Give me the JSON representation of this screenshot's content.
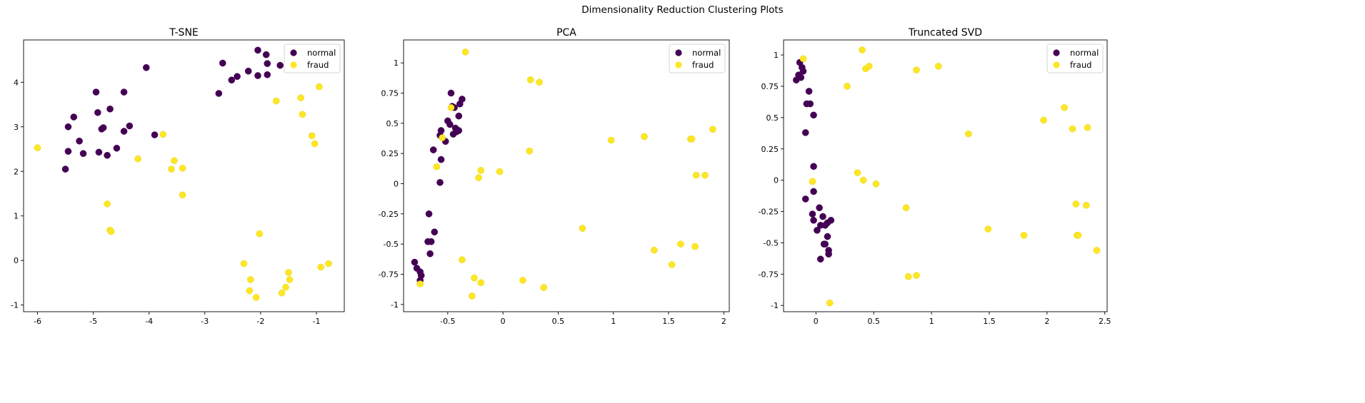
{
  "suptitle": "Dimensionality Reduction Clustering Plots",
  "colors": {
    "normal": "#440154",
    "fraud": "#fde725"
  },
  "chart_data": [
    {
      "type": "scatter",
      "title": "T-SNE",
      "xlabel": "",
      "ylabel": "",
      "xlim": [
        -6.25,
        -0.5
      ],
      "ylim": [
        -1.15,
        4.95
      ],
      "xticks": [
        -6,
        -5,
        -4,
        -3,
        -2,
        -1
      ],
      "yticks": [
        -1,
        0,
        1,
        2,
        3,
        4
      ],
      "legend": "top-right",
      "series": [
        {
          "name": "normal",
          "points": [
            [
              -5.5,
              2.05
            ],
            [
              -5.45,
              2.45
            ],
            [
              -5.45,
              3.0
            ],
            [
              -5.35,
              3.22
            ],
            [
              -5.25,
              2.68
            ],
            [
              -5.18,
              2.4
            ],
            [
              -4.95,
              3.78
            ],
            [
              -4.92,
              3.32
            ],
            [
              -4.9,
              2.43
            ],
            [
              -4.85,
              2.95
            ],
            [
              -4.82,
              2.98
            ],
            [
              -4.75,
              2.36
            ],
            [
              -4.7,
              3.4
            ],
            [
              -4.58,
              2.52
            ],
            [
              -4.45,
              3.78
            ],
            [
              -4.45,
              2.9
            ],
            [
              -4.35,
              3.02
            ],
            [
              -4.05,
              4.33
            ],
            [
              -3.9,
              2.82
            ],
            [
              -2.75,
              3.75
            ],
            [
              -2.68,
              4.43
            ],
            [
              -2.52,
              4.05
            ],
            [
              -2.42,
              4.13
            ],
            [
              -2.22,
              4.25
            ],
            [
              -2.05,
              4.72
            ],
            [
              -2.05,
              4.15
            ],
            [
              -1.9,
              4.62
            ],
            [
              -1.88,
              4.42
            ],
            [
              -1.88,
              4.17
            ],
            [
              -1.65,
              4.38
            ]
          ]
        },
        {
          "name": "fraud",
          "points": [
            [
              -6.0,
              2.53
            ],
            [
              -4.75,
              1.27
            ],
            [
              -4.7,
              0.68
            ],
            [
              -4.68,
              0.65
            ],
            [
              -4.2,
              2.28
            ],
            [
              -3.75,
              2.83
            ],
            [
              -3.6,
              2.05
            ],
            [
              -3.55,
              2.24
            ],
            [
              -3.4,
              2.07
            ],
            [
              -3.4,
              1.47
            ],
            [
              -2.3,
              -0.07
            ],
            [
              -2.2,
              -0.68
            ],
            [
              -2.18,
              -0.43
            ],
            [
              -2.08,
              -0.83
            ],
            [
              -2.02,
              0.6
            ],
            [
              -1.72,
              3.58
            ],
            [
              -1.62,
              -0.73
            ],
            [
              -1.55,
              -0.6
            ],
            [
              -1.5,
              -0.27
            ],
            [
              -1.48,
              -0.43
            ],
            [
              -1.28,
              3.65
            ],
            [
              -1.25,
              3.28
            ],
            [
              -1.08,
              2.8
            ],
            [
              -1.03,
              2.62
            ],
            [
              -0.95,
              3.9
            ],
            [
              -0.92,
              -0.15
            ],
            [
              -0.78,
              -0.07
            ]
          ]
        }
      ]
    },
    {
      "type": "scatter",
      "title": "PCA",
      "xlabel": "",
      "ylabel": "",
      "xlim": [
        -0.9,
        2.05
      ],
      "ylim": [
        -1.06,
        1.19
      ],
      "xticks": [
        -0.5,
        0.0,
        0.5,
        1.0,
        1.5,
        2.0
      ],
      "yticks": [
        -1.0,
        -0.75,
        -0.5,
        -0.25,
        0.0,
        0.25,
        0.5,
        0.75,
        1.0
      ],
      "legend": "top-right",
      "series": [
        {
          "name": "normal",
          "points": [
            [
              -0.8,
              -0.65
            ],
            [
              -0.78,
              -0.7
            ],
            [
              -0.75,
              -0.73
            ],
            [
              -0.75,
              -0.8
            ],
            [
              -0.74,
              -0.76
            ],
            [
              -0.68,
              -0.48
            ],
            [
              -0.67,
              -0.25
            ],
            [
              -0.66,
              -0.58
            ],
            [
              -0.65,
              -0.48
            ],
            [
              -0.62,
              -0.4
            ],
            [
              -0.63,
              0.28
            ],
            [
              -0.57,
              0.4
            ],
            [
              -0.56,
              0.44
            ],
            [
              -0.56,
              0.2
            ],
            [
              -0.57,
              0.01
            ],
            [
              -0.52,
              0.35
            ],
            [
              -0.5,
              0.52
            ],
            [
              -0.48,
              0.49
            ],
            [
              -0.47,
              0.75
            ],
            [
              -0.46,
              0.64
            ],
            [
              -0.44,
              0.63
            ],
            [
              -0.45,
              0.41
            ],
            [
              -0.43,
              0.46
            ],
            [
              -0.42,
              0.43
            ],
            [
              -0.4,
              0.44
            ],
            [
              -0.4,
              0.56
            ],
            [
              -0.39,
              0.66
            ],
            [
              -0.37,
              0.7
            ]
          ]
        },
        {
          "name": "fraud",
          "points": [
            [
              -0.75,
              -0.83
            ],
            [
              -0.6,
              0.14
            ],
            [
              -0.55,
              0.38
            ],
            [
              -0.47,
              0.63
            ],
            [
              -0.37,
              -0.63
            ],
            [
              -0.34,
              1.09
            ],
            [
              -0.28,
              -0.93
            ],
            [
              -0.26,
              -0.78
            ],
            [
              -0.22,
              0.05
            ],
            [
              -0.2,
              0.11
            ],
            [
              -0.2,
              -0.82
            ],
            [
              -0.03,
              0.1
            ],
            [
              0.18,
              -0.8
            ],
            [
              0.24,
              0.27
            ],
            [
              0.25,
              0.86
            ],
            [
              0.33,
              0.84
            ],
            [
              0.37,
              -0.86
            ],
            [
              0.72,
              -0.37
            ],
            [
              0.98,
              0.36
            ],
            [
              1.28,
              0.39
            ],
            [
              1.37,
              -0.55
            ],
            [
              1.53,
              -0.67
            ],
            [
              1.61,
              -0.5
            ],
            [
              1.7,
              0.37
            ],
            [
              1.71,
              0.37
            ],
            [
              1.74,
              -0.52
            ],
            [
              1.75,
              0.07
            ],
            [
              1.83,
              0.07
            ],
            [
              1.9,
              0.45
            ]
          ]
        }
      ]
    },
    {
      "type": "scatter",
      "title": "Truncated SVD",
      "xlabel": "",
      "ylabel": "",
      "xlim": [
        -0.28,
        2.52
      ],
      "ylim": [
        -1.05,
        1.12
      ],
      "xticks": [
        0.0,
        0.5,
        1.0,
        1.5,
        2.0,
        2.5
      ],
      "yticks": [
        -1.0,
        -0.75,
        -0.5,
        -0.25,
        0.0,
        0.25,
        0.5,
        0.75,
        1.0
      ],
      "legend": "top-right",
      "series": [
        {
          "name": "normal",
          "points": [
            [
              -0.17,
              0.8
            ],
            [
              -0.15,
              0.84
            ],
            [
              -0.14,
              0.94
            ],
            [
              -0.13,
              0.82
            ],
            [
              -0.12,
              0.9
            ],
            [
              -0.11,
              0.87
            ],
            [
              -0.09,
              0.38
            ],
            [
              -0.08,
              0.61
            ],
            [
              -0.06,
              0.71
            ],
            [
              -0.05,
              0.61
            ],
            [
              -0.02,
              0.52
            ],
            [
              -0.09,
              -0.15
            ],
            [
              -0.02,
              0.11
            ],
            [
              -0.02,
              -0.09
            ],
            [
              -0.03,
              -0.27
            ],
            [
              -0.02,
              -0.32
            ],
            [
              0.01,
              -0.4
            ],
            [
              0.03,
              -0.22
            ],
            [
              0.04,
              -0.36
            ],
            [
              0.04,
              -0.63
            ],
            [
              0.06,
              -0.29
            ],
            [
              0.07,
              -0.51
            ],
            [
              0.08,
              -0.51
            ],
            [
              0.08,
              -0.36
            ],
            [
              0.1,
              -0.34
            ],
            [
              0.1,
              -0.45
            ],
            [
              0.11,
              -0.56
            ],
            [
              0.11,
              -0.59
            ],
            [
              0.13,
              -0.32
            ]
          ]
        },
        {
          "name": "fraud",
          "points": [
            [
              -0.11,
              0.97
            ],
            [
              -0.03,
              -0.01
            ],
            [
              0.12,
              -0.98
            ],
            [
              0.27,
              0.75
            ],
            [
              0.36,
              0.06
            ],
            [
              0.4,
              1.04
            ],
            [
              0.41,
              0.0
            ],
            [
              0.43,
              0.89
            ],
            [
              0.46,
              0.91
            ],
            [
              0.52,
              -0.03
            ],
            [
              0.78,
              -0.22
            ],
            [
              0.8,
              -0.77
            ],
            [
              0.87,
              0.88
            ],
            [
              0.87,
              -0.76
            ],
            [
              1.06,
              0.91
            ],
            [
              1.32,
              0.37
            ],
            [
              1.49,
              -0.39
            ],
            [
              1.8,
              -0.44
            ],
            [
              1.97,
              0.48
            ],
            [
              2.15,
              0.58
            ],
            [
              2.22,
              0.41
            ],
            [
              2.25,
              -0.19
            ],
            [
              2.26,
              -0.44
            ],
            [
              2.27,
              -0.44
            ],
            [
              2.34,
              -0.2
            ],
            [
              2.35,
              0.42
            ],
            [
              2.43,
              -0.56
            ]
          ]
        }
      ]
    }
  ]
}
